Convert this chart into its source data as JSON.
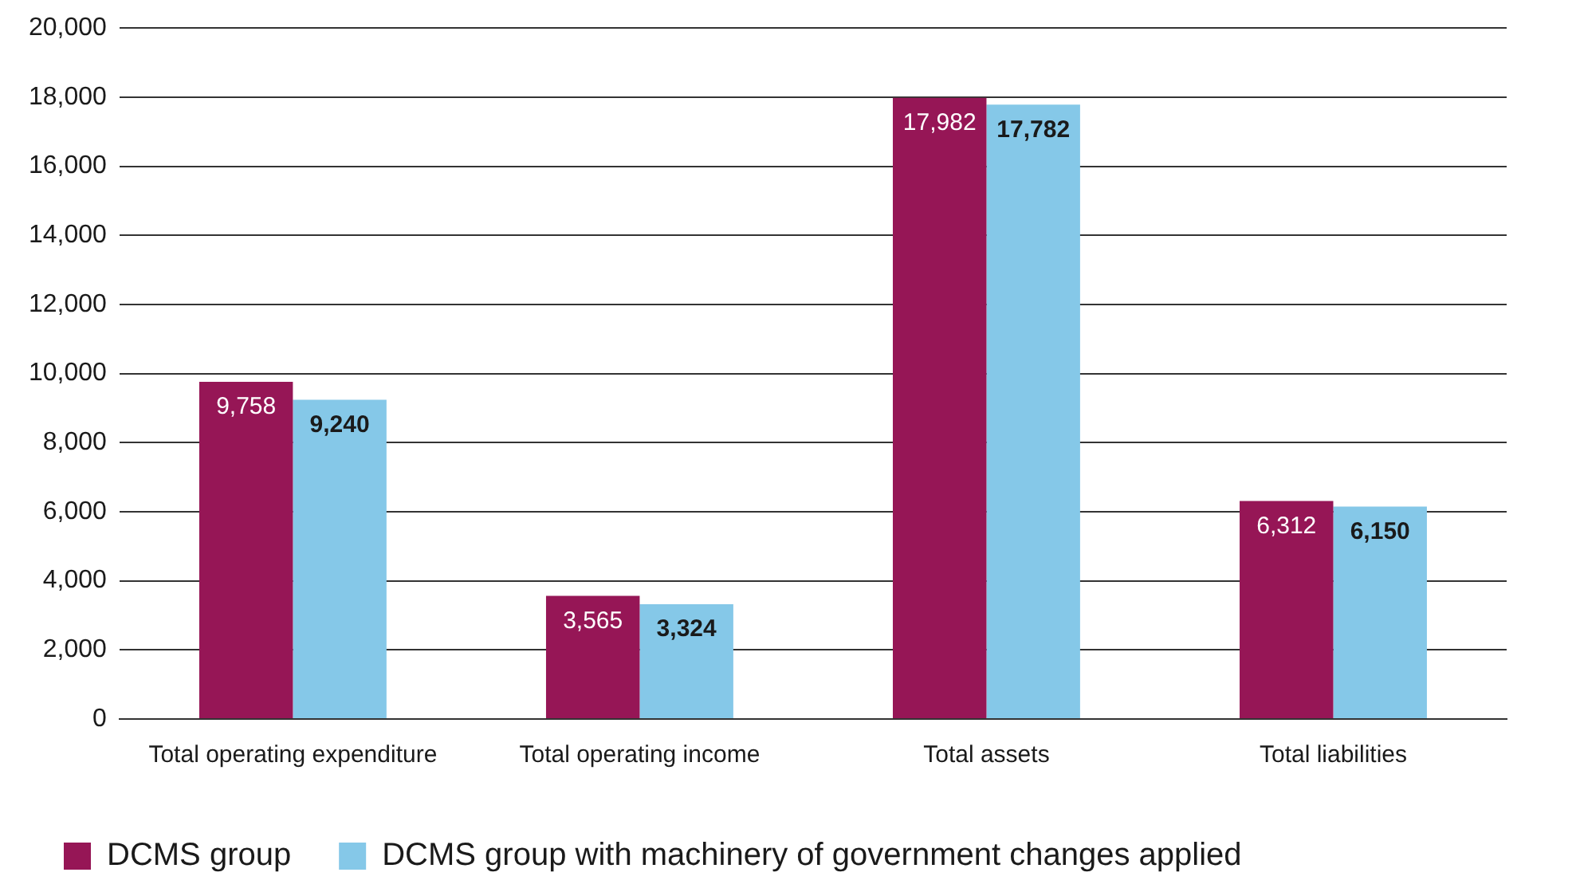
{
  "chart_data": {
    "type": "bar",
    "categories": [
      "Total operating expenditure",
      "Total operating income",
      "Total assets",
      "Total liabilities"
    ],
    "series": [
      {
        "name": "DCMS group",
        "color": "#961656",
        "values": [
          9758,
          3565,
          17982,
          6312
        ],
        "value_labels": [
          "9,758",
          "3,565",
          "17,982",
          "6,312"
        ]
      },
      {
        "name": "DCMS group with machinery of government changes applied",
        "color": "#85c8e8",
        "values": [
          9240,
          3324,
          17782,
          6150
        ],
        "value_labels": [
          "9,240",
          "3,324",
          "17,782",
          "6,150"
        ]
      }
    ],
    "ylim": [
      0,
      20000
    ],
    "yticks": [
      {
        "value": 0,
        "label": "0"
      },
      {
        "value": 2000,
        "label": "2,000"
      },
      {
        "value": 4000,
        "label": "4,000"
      },
      {
        "value": 6000,
        "label": "6,000"
      },
      {
        "value": 8000,
        "label": "8,000"
      },
      {
        "value": 10000,
        "label": "10,000"
      },
      {
        "value": 12000,
        "label": "12,000"
      },
      {
        "value": 14000,
        "label": "14,000"
      },
      {
        "value": 16000,
        "label": "16,000"
      },
      {
        "value": 18000,
        "label": "18,000"
      },
      {
        "value": 20000,
        "label": "20,000"
      }
    ],
    "grid": "y",
    "legend": "bottom left"
  }
}
